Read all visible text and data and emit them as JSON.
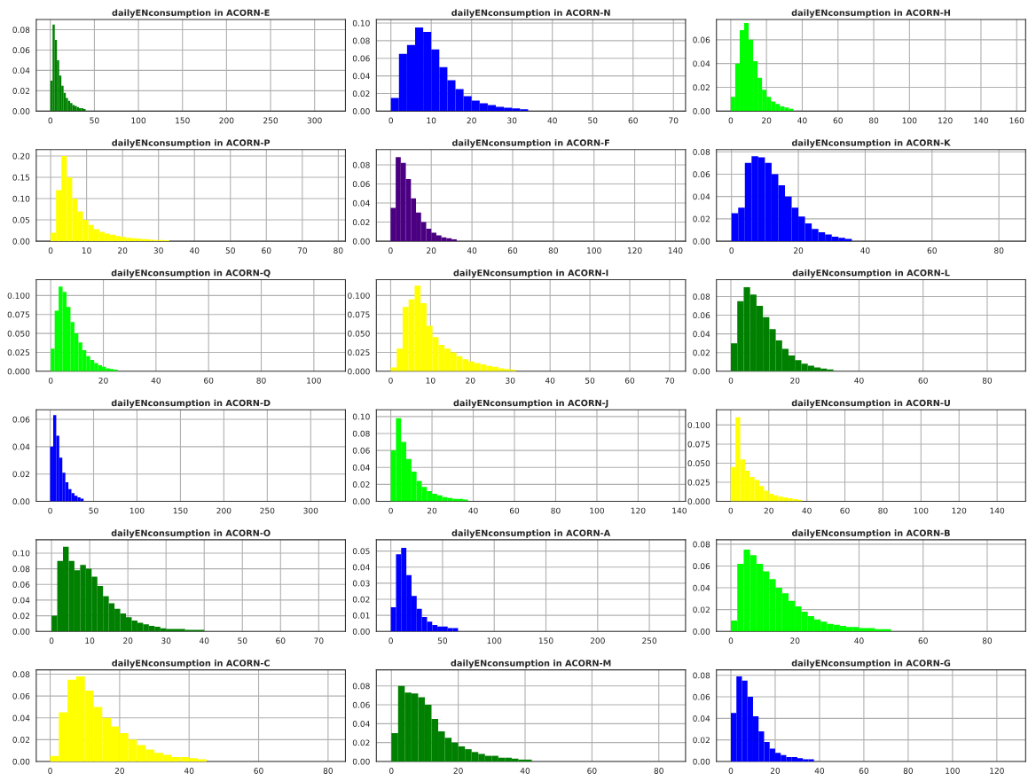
{
  "chart_data": [
    {
      "type": "histogram",
      "title": "dailyENconsumption in ACORN-E",
      "color": "#008000",
      "grid": true,
      "xlim": [
        -16,
        335
      ],
      "xticks": [
        0,
        50,
        100,
        150,
        200,
        250,
        300
      ],
      "ylim": [
        0,
        0.09
      ],
      "yticks": [
        {
          "value": 0,
          "label": "0.00"
        },
        {
          "value": 0.02,
          "label": "0.02"
        },
        {
          "value": 0.04,
          "label": "0.04"
        },
        {
          "value": 0.06,
          "label": "0.06"
        },
        {
          "value": 0.08,
          "label": "0.08"
        }
      ],
      "bins": [
        0,
        2.5,
        5,
        7.5,
        10,
        12.5,
        15,
        17.5,
        20,
        22.5,
        25,
        27.5,
        30,
        32.5,
        35,
        37.5,
        40
      ],
      "values": [
        0.03,
        0.085,
        0.07,
        0.05,
        0.035,
        0.025,
        0.018,
        0.013,
        0.01,
        0.008,
        0.006,
        0.005,
        0.004,
        0.003,
        0.003,
        0.002
      ]
    },
    {
      "type": "histogram",
      "title": "dailyENconsumption in ACORN-N",
      "color": "#0000ff",
      "grid": true,
      "xlim": [
        -3.6,
        73
      ],
      "xticks": [
        0,
        10,
        20,
        30,
        40,
        50,
        60,
        70
      ],
      "ylim": [
        0,
        0.104
      ],
      "yticks": [
        {
          "value": 0,
          "label": "0.00"
        },
        {
          "value": 0.02,
          "label": "0.02"
        },
        {
          "value": 0.04,
          "label": "0.04"
        },
        {
          "value": 0.06,
          "label": "0.06"
        },
        {
          "value": 0.08,
          "label": "0.08"
        },
        {
          "value": 0.1,
          "label": "0.10"
        }
      ],
      "bins": [
        0,
        2,
        4,
        6,
        8,
        10,
        12,
        14,
        16,
        18,
        20,
        22,
        24,
        26,
        28,
        30,
        32,
        34
      ],
      "values": [
        0.015,
        0.065,
        0.075,
        0.095,
        0.09,
        0.07,
        0.05,
        0.035,
        0.025,
        0.017,
        0.012,
        0.009,
        0.007,
        0.005,
        0.004,
        0.003,
        0.002
      ]
    },
    {
      "type": "histogram",
      "title": "dailyENconsumption in ACORN-H",
      "color": "#00ff00",
      "grid": true,
      "xlim": [
        -8,
        165
      ],
      "xticks": [
        0,
        20,
        40,
        60,
        80,
        100,
        120,
        140,
        160
      ],
      "ylim": [
        0,
        0.077
      ],
      "yticks": [
        {
          "value": 0,
          "label": "0.00"
        },
        {
          "value": 0.02,
          "label": "0.02"
        },
        {
          "value": 0.04,
          "label": "0.04"
        },
        {
          "value": 0.06,
          "label": "0.06"
        }
      ],
      "bins": [
        0,
        2.5,
        5,
        7.5,
        10,
        12.5,
        15,
        17.5,
        20,
        22.5,
        25,
        27.5,
        30,
        32.5,
        35
      ],
      "values": [
        0.012,
        0.04,
        0.068,
        0.074,
        0.06,
        0.042,
        0.028,
        0.018,
        0.012,
        0.008,
        0.006,
        0.004,
        0.003,
        0.002
      ]
    },
    {
      "type": "histogram",
      "title": "dailyENconsumption in ACORN-P",
      "color": "#ffff00",
      "grid": true,
      "xlim": [
        -4,
        82
      ],
      "xticks": [
        0,
        10,
        20,
        30,
        40,
        50,
        60,
        70,
        80
      ],
      "ylim": [
        0,
        0.215
      ],
      "yticks": [
        {
          "value": 0,
          "label": "0.00"
        },
        {
          "value": 0.05,
          "label": "0.05"
        },
        {
          "value": 0.1,
          "label": "0.10"
        },
        {
          "value": 0.15,
          "label": "0.15"
        },
        {
          "value": 0.2,
          "label": "0.20"
        }
      ],
      "bins": [
        0,
        1.5,
        3,
        4.5,
        6,
        7.5,
        9,
        10.5,
        12,
        13.5,
        15,
        16.5,
        18,
        19.5,
        21,
        22.5,
        24,
        25.5,
        27,
        28.5,
        30,
        31.5,
        33
      ],
      "values": [
        0.02,
        0.12,
        0.2,
        0.15,
        0.1,
        0.07,
        0.05,
        0.038,
        0.028,
        0.022,
        0.018,
        0.015,
        0.012,
        0.01,
        0.008,
        0.007,
        0.006,
        0.005,
        0.004,
        0.003,
        0.003,
        0.002
      ]
    },
    {
      "type": "histogram",
      "title": "dailyENconsumption in ACORN-F",
      "color": "#4b0082",
      "grid": true,
      "xlim": [
        -7,
        145
      ],
      "xticks": [
        0,
        20,
        40,
        60,
        80,
        100,
        120,
        140
      ],
      "ylim": [
        0,
        0.096
      ],
      "yticks": [
        {
          "value": 0,
          "label": "0.00"
        },
        {
          "value": 0.02,
          "label": "0.02"
        },
        {
          "value": 0.04,
          "label": "0.04"
        },
        {
          "value": 0.06,
          "label": "0.06"
        },
        {
          "value": 0.08,
          "label": "0.08"
        }
      ],
      "bins": [
        0,
        2.5,
        5,
        7.5,
        10,
        12.5,
        15,
        17.5,
        20,
        22.5,
        25,
        27.5,
        30,
        32.5
      ],
      "values": [
        0.035,
        0.088,
        0.082,
        0.065,
        0.045,
        0.03,
        0.02,
        0.013,
        0.009,
        0.006,
        0.004,
        0.003,
        0.002
      ]
    },
    {
      "type": "histogram",
      "title": "dailyENconsumption in ACORN-K",
      "color": "#0000ff",
      "grid": true,
      "xlim": [
        -4.5,
        88
      ],
      "xticks": [
        0,
        20,
        40,
        60,
        80
      ],
      "ylim": [
        0,
        0.082
      ],
      "yticks": [
        {
          "value": 0,
          "label": "0.00"
        },
        {
          "value": 0.02,
          "label": "0.02"
        },
        {
          "value": 0.04,
          "label": "0.04"
        },
        {
          "value": 0.06,
          "label": "0.06"
        },
        {
          "value": 0.08,
          "label": "0.08"
        }
      ],
      "bins": [
        0,
        2,
        4,
        6,
        8,
        10,
        12,
        14,
        16,
        18,
        20,
        22,
        24,
        26,
        28,
        30,
        32,
        34,
        36
      ],
      "values": [
        0.025,
        0.03,
        0.07,
        0.076,
        0.075,
        0.07,
        0.06,
        0.05,
        0.04,
        0.03,
        0.022,
        0.016,
        0.011,
        0.008,
        0.006,
        0.004,
        0.003,
        0.002
      ]
    },
    {
      "type": "histogram",
      "title": "dailyENconsumption in ACORN-Q",
      "color": "#00ff00",
      "grid": true,
      "xlim": [
        -5.5,
        112
      ],
      "xticks": [
        0,
        20,
        40,
        60,
        80,
        100
      ],
      "ylim": [
        0,
        0.121
      ],
      "yticks": [
        {
          "value": 0,
          "label": "0.000"
        },
        {
          "value": 0.025,
          "label": "0.025"
        },
        {
          "value": 0.05,
          "label": "0.050"
        },
        {
          "value": 0.075,
          "label": "0.075"
        },
        {
          "value": 0.1,
          "label": "0.100"
        }
      ],
      "bins": [
        0,
        1.5,
        3,
        4.5,
        6,
        7.5,
        9,
        10.5,
        12,
        13.5,
        15,
        16.5,
        18,
        19.5,
        21,
        22.5,
        24,
        25.5
      ],
      "values": [
        0.03,
        0.08,
        0.112,
        0.105,
        0.085,
        0.065,
        0.05,
        0.038,
        0.028,
        0.02,
        0.015,
        0.011,
        0.008,
        0.006,
        0.004,
        0.003,
        0.002
      ]
    },
    {
      "type": "histogram",
      "title": "dailyENconsumption in ACORN-I",
      "color": "#ffff00",
      "grid": true,
      "xlim": [
        -3.6,
        74
      ],
      "xticks": [
        0,
        10,
        20,
        30,
        40,
        50,
        60,
        70
      ],
      "ylim": [
        0,
        0.121
      ],
      "yticks": [
        {
          "value": 0,
          "label": "0.000"
        },
        {
          "value": 0.025,
          "label": "0.025"
        },
        {
          "value": 0.05,
          "label": "0.050"
        },
        {
          "value": 0.075,
          "label": "0.075"
        },
        {
          "value": 0.1,
          "label": "0.100"
        }
      ],
      "bins": [
        0,
        1.5,
        3,
        4.5,
        6,
        7.5,
        9,
        10.5,
        12,
        13.5,
        15,
        16.5,
        18,
        19.5,
        21,
        22.5,
        24,
        25.5,
        27,
        28.5,
        30,
        31.5
      ],
      "values": [
        0.005,
        0.03,
        0.085,
        0.095,
        0.113,
        0.09,
        0.06,
        0.045,
        0.035,
        0.03,
        0.025,
        0.02,
        0.016,
        0.013,
        0.011,
        0.009,
        0.007,
        0.006,
        0.004,
        0.003,
        0.002
      ]
    },
    {
      "type": "histogram",
      "title": "dailyENconsumption in ACORN-L",
      "color": "#008000",
      "grid": true,
      "xlim": [
        -4.5,
        92
      ],
      "xticks": [
        0,
        20,
        40,
        60,
        80
      ],
      "ylim": [
        0,
        0.098
      ],
      "yticks": [
        {
          "value": 0,
          "label": "0.00"
        },
        {
          "value": 0.02,
          "label": "0.02"
        },
        {
          "value": 0.04,
          "label": "0.04"
        },
        {
          "value": 0.06,
          "label": "0.06"
        },
        {
          "value": 0.08,
          "label": "0.08"
        }
      ],
      "bins": [
        0,
        2,
        4,
        6,
        8,
        10,
        12,
        14,
        16,
        18,
        20,
        22,
        24,
        26,
        28,
        30,
        32
      ],
      "values": [
        0.03,
        0.075,
        0.09,
        0.082,
        0.07,
        0.058,
        0.045,
        0.033,
        0.024,
        0.017,
        0.012,
        0.008,
        0.006,
        0.004,
        0.003,
        0.002
      ]
    },
    {
      "type": "histogram",
      "title": "dailyENconsumption in ACORN-D",
      "color": "#0000ff",
      "grid": true,
      "xlim": [
        -16,
        340
      ],
      "xticks": [
        0,
        50,
        100,
        150,
        200,
        250,
        300
      ],
      "ylim": [
        0,
        0.067
      ],
      "yticks": [
        {
          "value": 0,
          "label": "0.00"
        },
        {
          "value": 0.02,
          "label": "0.02"
        },
        {
          "value": 0.04,
          "label": "0.04"
        },
        {
          "value": 0.06,
          "label": "0.06"
        }
      ],
      "bins": [
        0,
        3.5,
        7,
        10.5,
        14,
        17.5,
        21,
        24.5,
        28,
        31.5,
        35,
        38.5
      ],
      "values": [
        0.04,
        0.063,
        0.048,
        0.032,
        0.021,
        0.014,
        0.009,
        0.006,
        0.004,
        0.003,
        0.002
      ]
    },
    {
      "type": "histogram",
      "title": "dailyENconsumption in ACORN-J",
      "color": "#00ff00",
      "grid": true,
      "xlim": [
        -7,
        143
      ],
      "xticks": [
        0,
        20,
        40,
        60,
        80,
        100,
        120,
        140
      ],
      "ylim": [
        0,
        0.108
      ],
      "yticks": [
        {
          "value": 0,
          "label": "0.00"
        },
        {
          "value": 0.02,
          "label": "0.02"
        },
        {
          "value": 0.04,
          "label": "0.04"
        },
        {
          "value": 0.06,
          "label": "0.06"
        },
        {
          "value": 0.08,
          "label": "0.08"
        },
        {
          "value": 0.1,
          "label": "0.10"
        }
      ],
      "bins": [
        0,
        2.5,
        5,
        7.5,
        10,
        12.5,
        15,
        17.5,
        20,
        22.5,
        25,
        27.5,
        30,
        32.5,
        35,
        37.5
      ],
      "values": [
        0.06,
        0.098,
        0.07,
        0.05,
        0.035,
        0.024,
        0.017,
        0.012,
        0.009,
        0.007,
        0.005,
        0.004,
        0.003,
        0.003,
        0.002
      ]
    },
    {
      "type": "histogram",
      "title": "dailyENconsumption in ACORN-U",
      "color": "#ffff00",
      "grid": true,
      "xlim": [
        -7.5,
        155
      ],
      "xticks": [
        0,
        20,
        40,
        60,
        80,
        100,
        120,
        140
      ],
      "ylim": [
        0,
        0.12
      ],
      "yticks": [
        {
          "value": 0,
          "label": "0.000"
        },
        {
          "value": 0.025,
          "label": "0.025"
        },
        {
          "value": 0.05,
          "label": "0.050"
        },
        {
          "value": 0.075,
          "label": "0.075"
        },
        {
          "value": 0.1,
          "label": "0.100"
        }
      ],
      "bins": [
        0,
        2.5,
        5,
        7.5,
        10,
        12.5,
        15,
        17.5,
        20,
        22.5,
        25,
        27.5,
        30,
        32.5,
        35,
        37.5
      ],
      "values": [
        0.045,
        0.11,
        0.055,
        0.04,
        0.032,
        0.028,
        0.02,
        0.014,
        0.01,
        0.008,
        0.006,
        0.005,
        0.004,
        0.003,
        0.002
      ]
    },
    {
      "type": "histogram",
      "title": "dailyENconsumption in ACORN-O",
      "color": "#008000",
      "grid": true,
      "xlim": [
        -4,
        77
      ],
      "xticks": [
        0,
        10,
        20,
        30,
        40,
        50,
        60,
        70
      ],
      "ylim": [
        0,
        0.117
      ],
      "yticks": [
        {
          "value": 0,
          "label": "0.00"
        },
        {
          "value": 0.02,
          "label": "0.02"
        },
        {
          "value": 0.04,
          "label": "0.04"
        },
        {
          "value": 0.06,
          "label": "0.06"
        },
        {
          "value": 0.08,
          "label": "0.08"
        },
        {
          "value": 0.1,
          "label": "0.10"
        }
      ],
      "bins": [
        0,
        1.5,
        3,
        4.5,
        6,
        7.5,
        9,
        10.5,
        12,
        13.5,
        15,
        16.5,
        18,
        19.5,
        21,
        22.5,
        24,
        25.5,
        27,
        28.5,
        30,
        35,
        40
      ],
      "values": [
        0.02,
        0.09,
        0.108,
        0.09,
        0.078,
        0.085,
        0.08,
        0.07,
        0.058,
        0.045,
        0.036,
        0.029,
        0.023,
        0.018,
        0.014,
        0.011,
        0.009,
        0.007,
        0.006,
        0.004,
        0.003,
        0.002
      ]
    },
    {
      "type": "histogram",
      "title": "dailyENconsumption in ACORN-A",
      "color": "#0000ff",
      "grid": true,
      "xlim": [
        -14,
        285
      ],
      "xticks": [
        0,
        50,
        100,
        150,
        200,
        250
      ],
      "ylim": [
        0,
        0.057
      ],
      "yticks": [
        {
          "value": 0,
          "label": "0.00"
        },
        {
          "value": 0.01,
          "label": "0.01"
        },
        {
          "value": 0.02,
          "label": "0.02"
        },
        {
          "value": 0.03,
          "label": "0.03"
        },
        {
          "value": 0.04,
          "label": "0.04"
        },
        {
          "value": 0.05,
          "label": "0.05"
        }
      ],
      "bins": [
        0,
        5,
        10,
        15,
        20,
        25,
        30,
        35,
        40,
        45,
        50,
        55,
        60,
        65
      ],
      "values": [
        0.015,
        0.048,
        0.052,
        0.035,
        0.022,
        0.014,
        0.009,
        0.006,
        0.004,
        0.003,
        0.003,
        0.002,
        0.002
      ]
    },
    {
      "type": "histogram",
      "title": "dailyENconsumption in ACORN-B",
      "color": "#00ff00",
      "grid": true,
      "xlim": [
        -4.5,
        92
      ],
      "xticks": [
        0,
        20,
        40,
        60,
        80
      ],
      "ylim": [
        0,
        0.084
      ],
      "yticks": [
        {
          "value": 0,
          "label": "0.00"
        },
        {
          "value": 0.02,
          "label": "0.02"
        },
        {
          "value": 0.04,
          "label": "0.04"
        },
        {
          "value": 0.06,
          "label": "0.06"
        },
        {
          "value": 0.08,
          "label": "0.08"
        }
      ],
      "bins": [
        0,
        2,
        4,
        6,
        8,
        10,
        12,
        14,
        16,
        18,
        20,
        22,
        24,
        26,
        28,
        30,
        32,
        34,
        36,
        38,
        40,
        45,
        50
      ],
      "values": [
        0.01,
        0.062,
        0.075,
        0.07,
        0.062,
        0.055,
        0.048,
        0.04,
        0.035,
        0.028,
        0.023,
        0.018,
        0.014,
        0.011,
        0.009,
        0.007,
        0.006,
        0.005,
        0.004,
        0.004,
        0.003,
        0.002
      ]
    },
    {
      "type": "histogram",
      "title": "dailyENconsumption in ACORN-C",
      "color": "#ffff00",
      "grid": true,
      "xlim": [
        -4,
        85
      ],
      "xticks": [
        0,
        20,
        40,
        60,
        80
      ],
      "ylim": [
        0,
        0.084
      ],
      "yticks": [
        {
          "value": 0,
          "label": "0.00"
        },
        {
          "value": 0.02,
          "label": "0.02"
        },
        {
          "value": 0.04,
          "label": "0.04"
        },
        {
          "value": 0.06,
          "label": "0.06"
        },
        {
          "value": 0.08,
          "label": "0.08"
        }
      ],
      "bins": [
        0,
        2.5,
        5,
        7.5,
        10,
        12.5,
        15,
        17.5,
        20,
        22.5,
        25,
        27.5,
        30,
        32.5,
        35,
        37.5,
        40,
        42.5,
        45
      ],
      "values": [
        0.005,
        0.045,
        0.075,
        0.078,
        0.065,
        0.05,
        0.04,
        0.032,
        0.026,
        0.02,
        0.015,
        0.011,
        0.008,
        0.006,
        0.004,
        0.004,
        0.003,
        0.002
      ]
    },
    {
      "type": "histogram",
      "title": "dailyENconsumption in ACORN-M",
      "color": "#008000",
      "grid": true,
      "xlim": [
        -4.5,
        88
      ],
      "xticks": [
        0,
        20,
        40,
        60,
        80
      ],
      "ylim": [
        0,
        0.097
      ],
      "yticks": [
        {
          "value": 0,
          "label": "0.00"
        },
        {
          "value": 0.02,
          "label": "0.02"
        },
        {
          "value": 0.04,
          "label": "0.04"
        },
        {
          "value": 0.06,
          "label": "0.06"
        },
        {
          "value": 0.08,
          "label": "0.08"
        }
      ],
      "bins": [
        0,
        2,
        4,
        6,
        8,
        10,
        12,
        14,
        16,
        18,
        20,
        22,
        24,
        26,
        28,
        30,
        32,
        34,
        36,
        38,
        40,
        42
      ],
      "values": [
        0.03,
        0.08,
        0.073,
        0.072,
        0.068,
        0.06,
        0.045,
        0.032,
        0.025,
        0.02,
        0.016,
        0.013,
        0.01,
        0.008,
        0.006,
        0.006,
        0.004,
        0.004,
        0.003,
        0.002,
        0.002
      ]
    },
    {
      "type": "histogram",
      "title": "dailyENconsumption in ACORN-G",
      "color": "#0000ff",
      "grid": true,
      "xlim": [
        -6.5,
        133
      ],
      "xticks": [
        0,
        20,
        40,
        60,
        80,
        100,
        120
      ],
      "ylim": [
        0,
        0.085
      ],
      "yticks": [
        {
          "value": 0,
          "label": "0.00"
        },
        {
          "value": 0.02,
          "label": "0.02"
        },
        {
          "value": 0.04,
          "label": "0.04"
        },
        {
          "value": 0.06,
          "label": "0.06"
        },
        {
          "value": 0.08,
          "label": "0.08"
        }
      ],
      "bins": [
        0,
        2.5,
        5,
        7.5,
        10,
        12.5,
        15,
        17.5,
        20,
        22.5,
        25,
        27.5,
        30,
        32.5,
        35,
        37.5
      ],
      "values": [
        0.045,
        0.079,
        0.075,
        0.06,
        0.042,
        0.028,
        0.018,
        0.012,
        0.008,
        0.006,
        0.004,
        0.004,
        0.003,
        0.002,
        0.002
      ]
    }
  ]
}
